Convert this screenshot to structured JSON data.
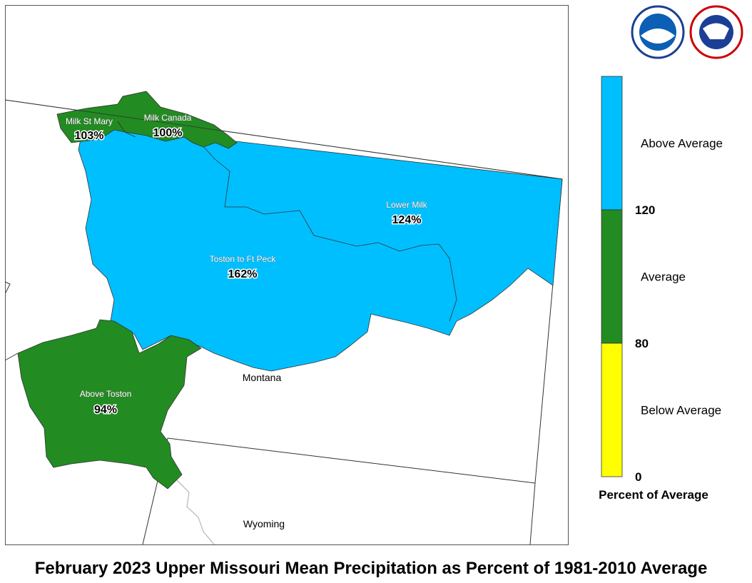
{
  "map": {
    "title": "February 2023 Upper Missouri Mean Precipitation as Percent of 1981-2010 Average",
    "regions": [
      {
        "name": "Milk St Mary",
        "percent": "103%",
        "color": "#228b22"
      },
      {
        "name": "Milk Canada",
        "percent": "100%",
        "color": "#228b22"
      },
      {
        "name": "Lower Milk",
        "percent": "124%",
        "color": "#00bfff"
      },
      {
        "name": "Toston to Ft Peck",
        "percent": "162%",
        "color": "#00bfff"
      },
      {
        "name": "Above Toston",
        "percent": "94%",
        "color": "#228b22"
      }
    ],
    "states": [
      "Montana",
      "Wyoming"
    ],
    "legend": {
      "title": "Percent of Average",
      "classes": [
        {
          "label": "Above Average",
          "color": "#00bfff"
        },
        {
          "label": "Average",
          "color": "#228b22"
        },
        {
          "label": "Below Average",
          "color": "#ffff00"
        }
      ],
      "breaks": [
        120,
        80,
        0
      ]
    }
  }
}
